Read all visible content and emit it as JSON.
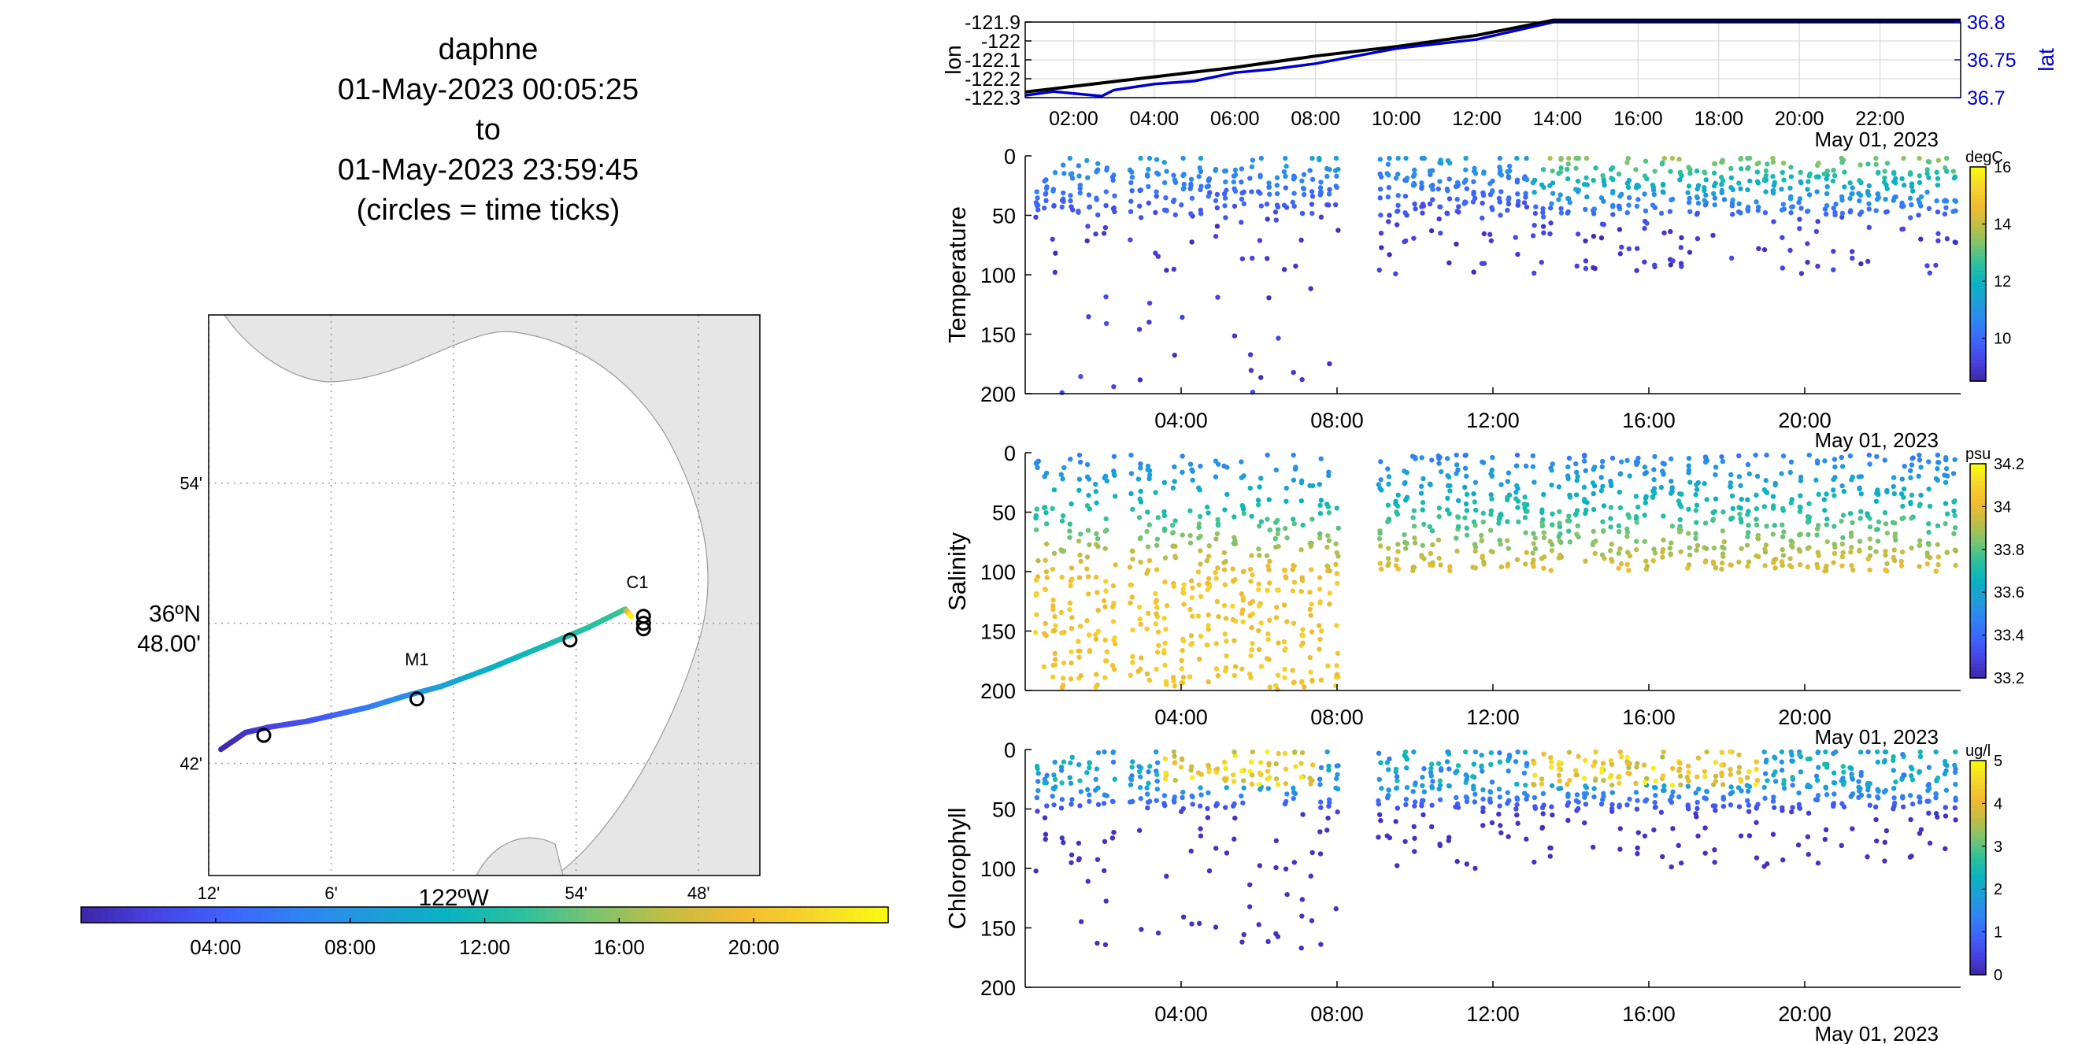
{
  "header": {
    "vehicle": "daphne",
    "start": "01-May-2023 00:05:25",
    "to": "to",
    "end": "01-May-2023 23:59:45",
    "note": "(circles = time ticks)"
  },
  "colors": {
    "track_black": "#000000",
    "track_blue": "#0000cc",
    "land": "#e6e6e6",
    "colormap": [
      "#3e26a8",
      "#4743e3",
      "#3f63fb",
      "#2f84f4",
      "#1f9dd9",
      "#08b3c1",
      "#2bc19d",
      "#7cc46f",
      "#c3bd43",
      "#f2bb31",
      "#f6d72b",
      "#f9fb0e"
    ]
  },
  "chart_data": [
    {
      "id": "map",
      "type": "scatter",
      "title": "",
      "yticks": [
        {
          "label": "54'",
          "lat": 36.9
        },
        {
          "label": "36ºN 48.00'",
          "lat": 36.8
        },
        {
          "label": "42'",
          "lat": 36.7
        }
      ],
      "xticks": [
        {
          "label": "12'",
          "lon": -122.2
        },
        {
          "label": "6'",
          "lon": -122.1
        },
        {
          "label": "122ºW",
          "lon": -122.0
        },
        {
          "label": "54'",
          "lon": -121.9
        },
        {
          "label": "48'",
          "lon": -121.8
        }
      ],
      "ylabel_main": "36ºN",
      "ylabel_sub": "48.00'",
      "xlabel_main": "122ºW",
      "xlim": [
        -122.2,
        -121.75
      ],
      "ylim": [
        36.62,
        37.02
      ],
      "track": [
        {
          "lon": -122.19,
          "lat": 36.71,
          "hour": 0.1
        },
        {
          "lon": -122.17,
          "lat": 36.722,
          "hour": 1.0
        },
        {
          "lon": -122.15,
          "lat": 36.726,
          "hour": 2.0
        },
        {
          "lon": -122.12,
          "lat": 36.73,
          "hour": 3.0
        },
        {
          "lon": -122.1,
          "lat": 36.734,
          "hour": 4.0
        },
        {
          "lon": -122.07,
          "lat": 36.74,
          "hour": 6.0
        },
        {
          "lon": -122.04,
          "lat": 36.748,
          "hour": 7.5
        },
        {
          "lon": -122.01,
          "lat": 36.755,
          "hour": 9.0
        },
        {
          "lon": -121.97,
          "lat": 36.768,
          "hour": 10.5
        },
        {
          "lon": -121.92,
          "lat": 36.786,
          "hour": 12.0
        },
        {
          "lon": -121.89,
          "lat": 36.797,
          "hour": 12.8
        },
        {
          "lon": -121.86,
          "lat": 36.81,
          "hour": 13.6
        },
        {
          "lon": -121.855,
          "lat": 36.805,
          "hour": 24.0
        }
      ],
      "time_ticks": [
        {
          "lon": -122.155,
          "lat": 36.72
        },
        {
          "lon": -122.03,
          "lat": 36.746
        },
        {
          "lon": -121.905,
          "lat": 36.788
        },
        {
          "lon": -121.845,
          "lat": 36.805
        },
        {
          "lon": -121.845,
          "lat": 36.8
        },
        {
          "lon": -121.845,
          "lat": 36.796
        }
      ],
      "stations": [
        {
          "name": "C1",
          "lon": -121.85,
          "lat": 36.825
        },
        {
          "name": "M1",
          "lon": -122.03,
          "lat": 36.77
        }
      ],
      "colorbar": {
        "ticks": [
          "04:00",
          "08:00",
          "12:00",
          "16:00",
          "20:00"
        ],
        "hours": [
          4,
          8,
          12,
          16,
          20
        ],
        "range": [
          0,
          24
        ]
      }
    },
    {
      "id": "lonlat",
      "type": "line",
      "xlim": [
        0.8,
        24.0
      ],
      "xticks": [
        "02:00",
        "04:00",
        "06:00",
        "08:00",
        "10:00",
        "12:00",
        "14:00",
        "16:00",
        "18:00",
        "20:00",
        "22:00"
      ],
      "xtick_hours": [
        2,
        4,
        6,
        8,
        10,
        12,
        14,
        16,
        18,
        20,
        22
      ],
      "ylabel_left": "lon",
      "ylabel_right": "lat",
      "ylim_left": [
        -122.3,
        -121.9
      ],
      "ylim_right": [
        36.7,
        36.8
      ],
      "yticks_left": [
        "-121.9",
        "-122",
        "-122.1",
        "-122.2",
        "-122.3"
      ],
      "yticks_left_values": [
        -121.9,
        -122.0,
        -122.1,
        -122.2,
        -122.3
      ],
      "yticks_right": [
        "36.8",
        "36.75",
        "36.7"
      ],
      "yticks_right_values": [
        36.8,
        36.75,
        36.7
      ],
      "date_label": "May 01, 2023",
      "series": [
        {
          "name": "lon",
          "x": [
            0.8,
            2,
            4,
            6,
            8,
            10,
            12,
            13.9,
            16,
            18,
            20,
            22,
            24
          ],
          "y": [
            -122.27,
            -122.24,
            -122.19,
            -122.14,
            -122.08,
            -122.03,
            -121.97,
            -121.89,
            -121.89,
            -121.89,
            -121.89,
            -121.89,
            -121.89
          ]
        },
        {
          "name": "lat",
          "x": [
            0.8,
            1.5,
            2.7,
            3.0,
            4.0,
            5.0,
            6.0,
            7.0,
            8.0,
            10.0,
            12.0,
            13.9,
            16,
            18,
            20,
            22,
            24
          ],
          "y": [
            36.703,
            36.708,
            36.702,
            36.71,
            36.718,
            36.722,
            36.733,
            36.738,
            36.745,
            36.765,
            36.777,
            36.8,
            36.8,
            36.8,
            36.8,
            36.8,
            36.8
          ]
        }
      ]
    },
    {
      "id": "temperature",
      "type": "scatter",
      "ylabel": "Temperature",
      "ylim": [
        200,
        0
      ],
      "yticks": [
        "0",
        "50",
        "100",
        "150",
        "200"
      ],
      "ytick_values": [
        0,
        50,
        100,
        150,
        200
      ],
      "xlim": [
        0.0,
        24.0
      ],
      "xticks": [
        "04:00",
        "08:00",
        "12:00",
        "16:00",
        "20:00"
      ],
      "xtick_hours": [
        4,
        8,
        12,
        16,
        20
      ],
      "date_label": "May 01, 2023",
      "colorbar": {
        "unit": "degC",
        "ticks": [
          "16",
          "14",
          "12",
          "10"
        ],
        "tick_values": [
          16,
          14,
          12,
          10
        ],
        "range": [
          8.5,
          16
        ]
      },
      "profile": {
        "deep_until_hour": 8.1,
        "max_depth_early": 200,
        "max_depth_late": 100,
        "surface_value": 12.5,
        "deep_value": 9.0
      }
    },
    {
      "id": "salinity",
      "type": "scatter",
      "ylabel": "Salinity",
      "ylim": [
        200,
        0
      ],
      "yticks": [
        "0",
        "50",
        "100",
        "150",
        "200"
      ],
      "ytick_values": [
        0,
        50,
        100,
        150,
        200
      ],
      "xlim": [
        0.0,
        24.0
      ],
      "xticks": [
        "04:00",
        "08:00",
        "12:00",
        "16:00",
        "20:00"
      ],
      "xtick_hours": [
        4,
        8,
        12,
        16,
        20
      ],
      "date_label": "May 01, 2023",
      "colorbar": {
        "unit": "psu",
        "ticks": [
          "34.2",
          "34",
          "33.8",
          "33.6",
          "33.4",
          "33.2"
        ],
        "tick_values": [
          34.2,
          34.0,
          33.8,
          33.6,
          33.4,
          33.2
        ],
        "range": [
          33.2,
          34.2
        ]
      },
      "profile": {
        "deep_until_hour": 8.1,
        "max_depth_early": 200,
        "max_depth_late": 100,
        "surface_value": 33.45,
        "deep_value": 34.05
      }
    },
    {
      "id": "chlorophyll",
      "type": "scatter",
      "ylabel": "Chlorophyll",
      "ylim": [
        200,
        0
      ],
      "yticks": [
        "0",
        "50",
        "100",
        "150",
        "200"
      ],
      "ytick_values": [
        0,
        50,
        100,
        150,
        200
      ],
      "xlim": [
        0.0,
        24.0
      ],
      "xticks": [
        "04:00",
        "08:00",
        "12:00",
        "16:00",
        "20:00"
      ],
      "xtick_hours": [
        4,
        8,
        12,
        16,
        20
      ],
      "date_label": "May 01, 2023",
      "colorbar": {
        "unit": "ug/l",
        "ticks": [
          "5",
          "4",
          "3",
          "2",
          "1",
          "0"
        ],
        "tick_values": [
          5,
          4,
          3,
          2,
          1,
          0
        ],
        "range": [
          0,
          5
        ]
      },
      "profile": {
        "deep_until_hour": 8.1,
        "max_depth_early": 170,
        "max_depth_late": 100,
        "surface_value": 4.2,
        "deep_value": 0.2
      }
    }
  ]
}
